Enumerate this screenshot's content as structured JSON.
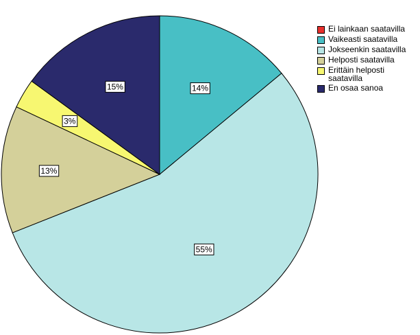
{
  "chart_data": {
    "type": "pie",
    "legend_position": "top-right",
    "slices": [
      {
        "label": "Ei lainkaan saatavilla",
        "value": 0,
        "display": "",
        "color": "#e8302c"
      },
      {
        "label": "Vaikeasti saatavilla",
        "value": 14,
        "display": "14%",
        "color": "#48bfc5"
      },
      {
        "label": "Jokseenkin saatavilla",
        "value": 55,
        "display": "55%",
        "color": "#b8e6e6"
      },
      {
        "label": "Helposti saatavilla",
        "value": 13,
        "display": "13%",
        "color": "#d4d09a"
      },
      {
        "label": "Erittäin helposti saatavilla",
        "value": 3,
        "display": "3%",
        "color": "#f7f771"
      },
      {
        "label": "En osaa sanoa",
        "value": 15,
        "display": "15%",
        "color": "#2a2a6c"
      }
    ]
  }
}
